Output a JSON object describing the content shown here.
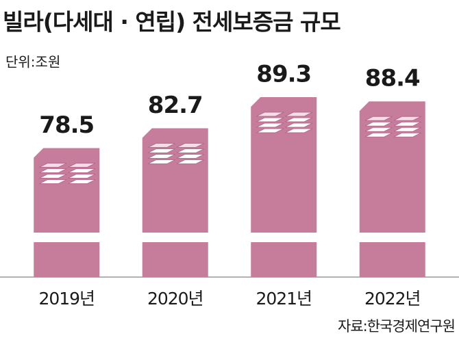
{
  "chart_data": {
    "type": "bar",
    "title": "빌라(다세대 · 연립) 전세보증금 규모",
    "unit_label": "단위:조원",
    "categories": [
      "2019년",
      "2020년",
      "2021년",
      "2022년"
    ],
    "values": [
      78.5,
      82.7,
      89.3,
      88.4
    ],
    "color": "#c67d9b",
    "axis_break": true,
    "source": "자료:한국경제연구원"
  }
}
